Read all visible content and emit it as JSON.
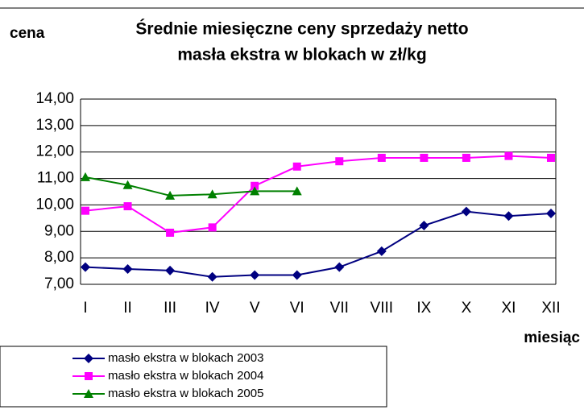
{
  "chart_data": {
    "type": "line",
    "title": "Średnie miesięczne ceny sprzedaży netto",
    "subtitle": "masła ekstra w blokach w zł/kg",
    "y_label": "cena",
    "x_label": "miesiąc",
    "categories": [
      "I",
      "II",
      "III",
      "IV",
      "V",
      "VI",
      "VII",
      "VIII",
      "IX",
      "X",
      "XI",
      "XII"
    ],
    "series": [
      {
        "name": "masło ekstra w  blokach 2003",
        "color": "#000080",
        "marker": "diamond",
        "values": [
          7.65,
          7.58,
          7.52,
          7.28,
          7.35,
          7.35,
          7.65,
          8.25,
          9.22,
          9.75,
          9.58,
          9.68
        ]
      },
      {
        "name": "masło ekstra w  blokach 2004",
        "color": "#ff00ff",
        "marker": "square",
        "values": [
          9.78,
          9.95,
          8.95,
          9.15,
          10.72,
          11.45,
          11.65,
          11.78,
          11.78,
          11.78,
          11.85,
          11.78
        ]
      },
      {
        "name": "masło ekstra w  blokach 2005",
        "color": "#008000",
        "marker": "triangle",
        "values": [
          11.05,
          10.75,
          10.35,
          10.4,
          10.52,
          10.52,
          null,
          null,
          null,
          null,
          null,
          null
        ]
      }
    ],
    "ylim": [
      7,
      14
    ],
    "yticks": [
      {
        "value": 7,
        "label": "7,00"
      },
      {
        "value": 8,
        "label": "8,00"
      },
      {
        "value": 9,
        "label": "9,00"
      },
      {
        "value": 10,
        "label": "10,00"
      },
      {
        "value": 11,
        "label": "11,00"
      },
      {
        "value": 12,
        "label": "12,00"
      },
      {
        "value": 13,
        "label": "13,00"
      },
      {
        "value": 14,
        "label": "14,00"
      }
    ],
    "grid": true,
    "legend": "bottom-left"
  }
}
